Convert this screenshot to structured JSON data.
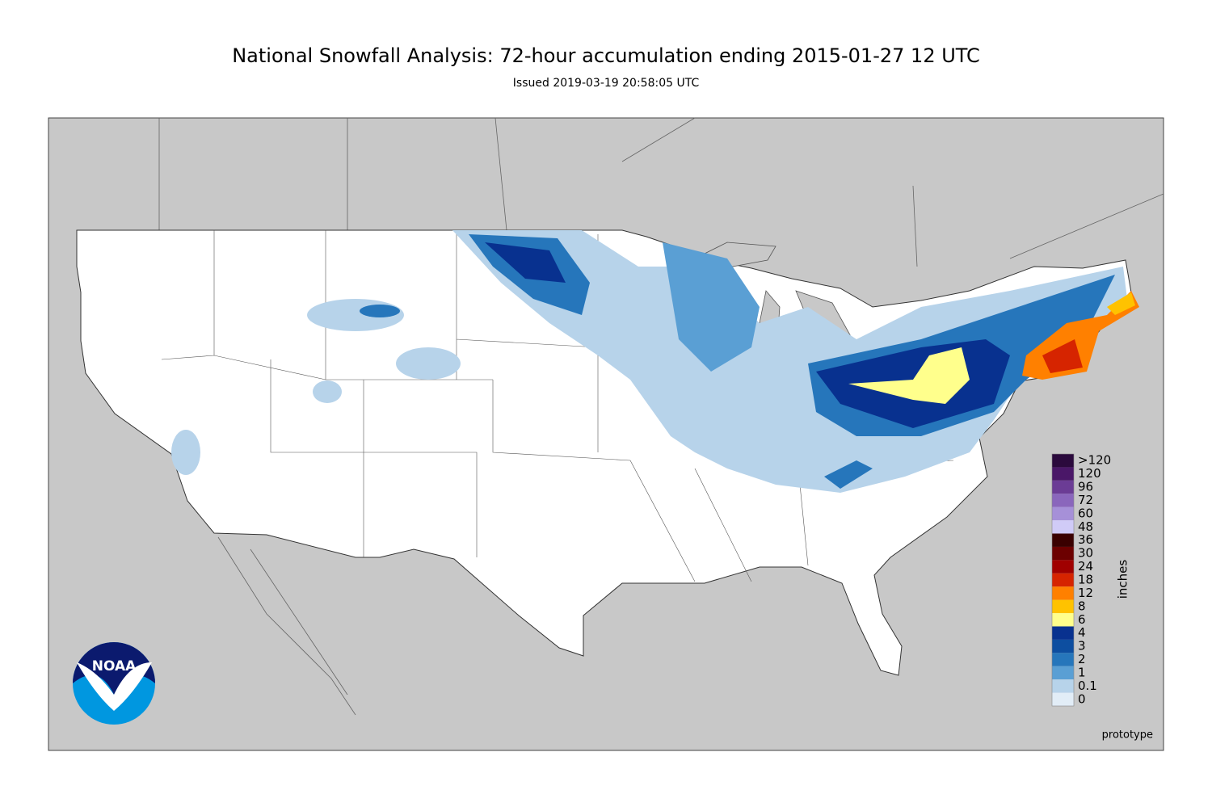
{
  "title": "National Snowfall Analysis: 72-hour accumulation ending 2015-01-27 12 UTC",
  "subtitle": "Issued 2019-03-19 20:58:05 UTC",
  "legend": {
    "label": "inches",
    "items": [
      {
        "label": ">120",
        "color": "#2b0a3d"
      },
      {
        "label": "120",
        "color": "#4a1768"
      },
      {
        "label": "96",
        "color": "#6b3c95"
      },
      {
        "label": "72",
        "color": "#8a66bc"
      },
      {
        "label": "60",
        "color": "#a690d8"
      },
      {
        "label": "48",
        "color": "#d0cbf7"
      },
      {
        "label": "36",
        "color": "#3a0000"
      },
      {
        "label": "30",
        "color": "#6c0000"
      },
      {
        "label": "24",
        "color": "#a00000"
      },
      {
        "label": "18",
        "color": "#d62400"
      },
      {
        "label": "12",
        "color": "#ff8000"
      },
      {
        "label": "8",
        "color": "#ffc200"
      },
      {
        "label": "6",
        "color": "#ffff8c"
      },
      {
        "label": "4",
        "color": "#08318f"
      },
      {
        "label": "3",
        "color": "#0d4ea0"
      },
      {
        "label": "2",
        "color": "#2676bb"
      },
      {
        "label": "1",
        "color": "#5a9fd4"
      },
      {
        "label": "0.1",
        "color": "#b7d3ea"
      },
      {
        "label": "0",
        "color": "#e2edf7"
      }
    ]
  },
  "footer": "prototype",
  "logo": "NOAA"
}
